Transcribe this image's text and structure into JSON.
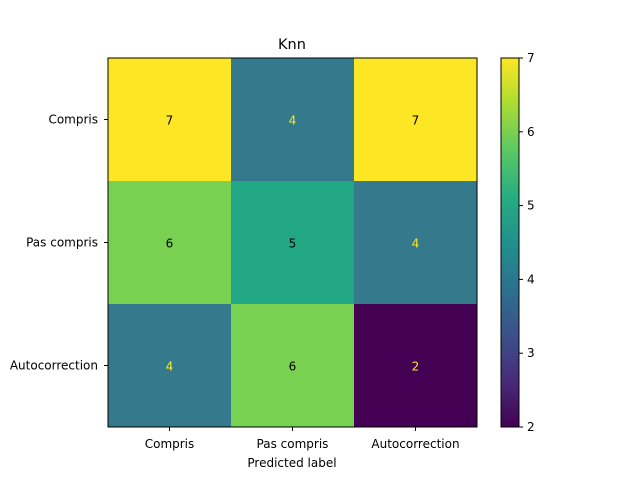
{
  "chart_data": {
    "type": "heatmap",
    "title": "Knn",
    "xlabel": "Predicted label",
    "ylabel": "",
    "x_categories": [
      "Compris",
      "Pas compris",
      "Autocorrection"
    ],
    "y_categories": [
      "Compris",
      "Pas compris",
      "Autocorrection"
    ],
    "values": [
      [
        7,
        4,
        7
      ],
      [
        6,
        5,
        4
      ],
      [
        4,
        6,
        2
      ]
    ],
    "colormap": "viridis",
    "color_range": [
      2,
      7
    ],
    "colorbar_ticks": [
      "2",
      "3",
      "4",
      "5",
      "6",
      "7"
    ],
    "colors": {
      "2": "#440154",
      "4": "#35798d",
      "5": "#22a784",
      "6": "#79d151",
      "7": "#fde724",
      "text_dark": "#000000",
      "text_light": "#fde724"
    }
  }
}
